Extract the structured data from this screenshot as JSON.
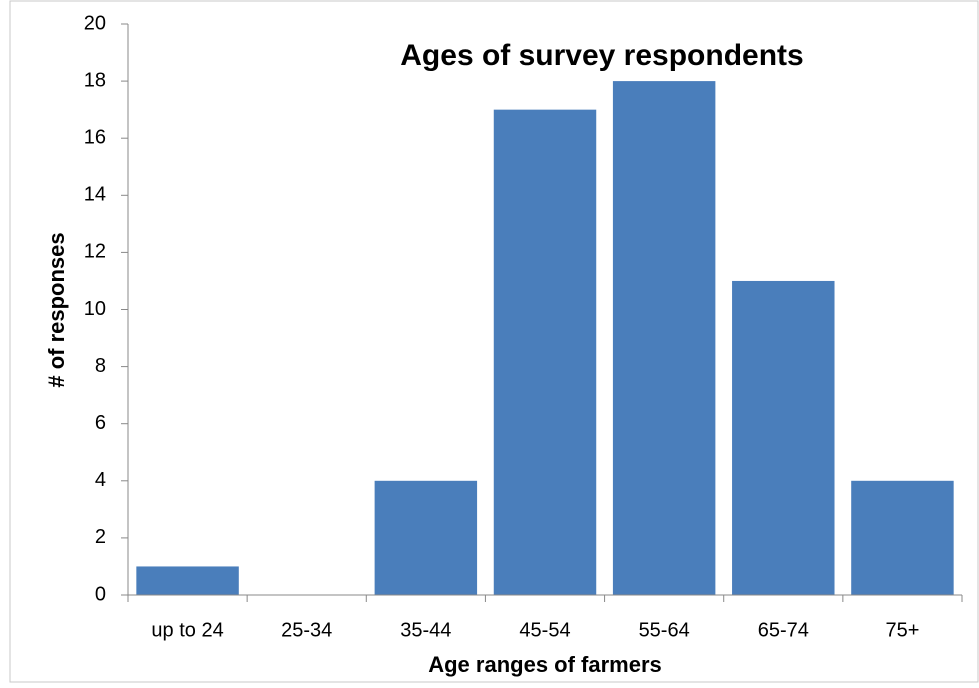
{
  "chart_data": {
    "type": "bar",
    "title": "Ages of survey respondents",
    "x_label": "Age ranges of farmers",
    "y_label": "# of responses",
    "categories": [
      "up to 24",
      "25-34",
      "35-44",
      "45-54",
      "55-64",
      "65-74",
      "75+"
    ],
    "values": [
      1,
      0,
      4,
      17,
      18,
      11,
      4
    ],
    "color": "#4a7ebb",
    "ylim": [
      0,
      20
    ],
    "yticks": [
      0,
      2,
      4,
      6,
      8,
      10,
      12,
      14,
      16,
      18,
      20
    ],
    "grid": false
  }
}
